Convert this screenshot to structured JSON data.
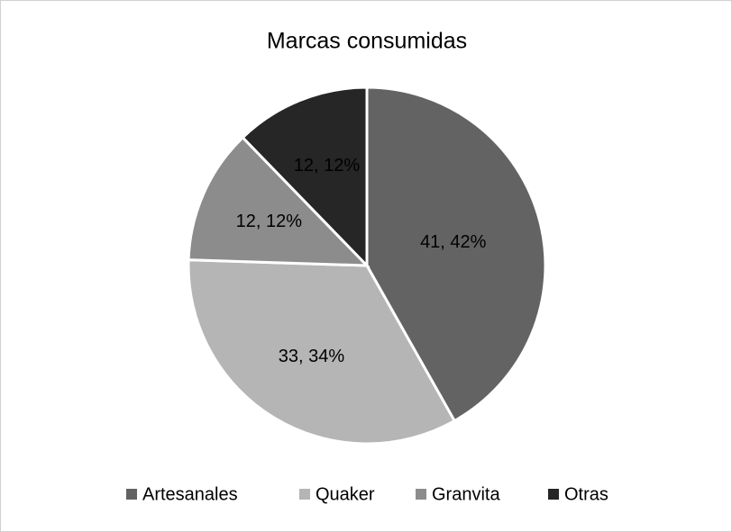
{
  "chart_data": {
    "type": "pie",
    "title": "Marcas consumidas",
    "categories": [
      "Artesanales",
      "Quaker",
      "Granvita",
      "Otras"
    ],
    "values": [
      41,
      33,
      12,
      12
    ],
    "value_labels": [
      "41, 42%",
      "33, 34%",
      "12, 12%",
      "12, 12%"
    ],
    "colors": [
      "#636363",
      "#b5b5b5",
      "#8c8c8c",
      "#262626"
    ],
    "legend": "bottom"
  }
}
